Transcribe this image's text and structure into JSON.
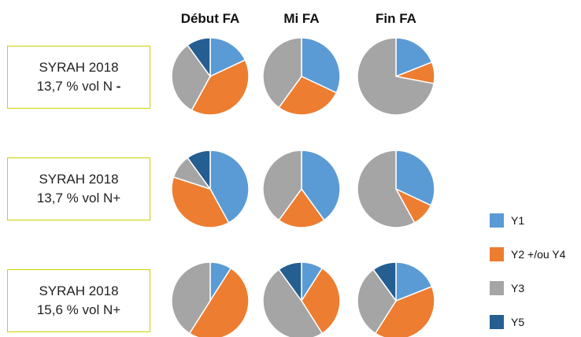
{
  "column_headers": [
    "Début FA",
    "Mi FA",
    "Fin FA"
  ],
  "rows": [
    {
      "line1": "SYRAH 2018",
      "line2": "13,7 % vol N",
      "suffix": "-"
    },
    {
      "line1": "SYRAH 2018",
      "line2": "13,7 % vol N+",
      "suffix": ""
    },
    {
      "line1": "SYRAH 2018",
      "line2": "15,6 % vol N+",
      "suffix": ""
    }
  ],
  "legend": [
    {
      "label": "Y1",
      "color": "#5b9bd5"
    },
    {
      "label": "Y2 +/ou Y4",
      "color": "#ed7d31"
    },
    {
      "label": "Y3",
      "color": "#a5a5a5"
    },
    {
      "label": "Y5",
      "color": "#255e91"
    }
  ],
  "chart_data": {
    "type": "pie",
    "series_names": [
      "Y1",
      "Y2 +/ou Y4",
      "Y3",
      "Y5"
    ],
    "colors": [
      "#5b9bd5",
      "#ed7d31",
      "#a5a5a5",
      "#255e91"
    ],
    "pies": [
      {
        "row": 0,
        "column": "Début FA",
        "values": [
          18,
          40,
          32,
          10
        ]
      },
      {
        "row": 0,
        "column": "Mi FA",
        "values": [
          32,
          28,
          40,
          0
        ]
      },
      {
        "row": 0,
        "column": "Fin FA",
        "values": [
          19,
          9,
          72,
          0
        ]
      },
      {
        "row": 1,
        "column": "Début FA",
        "values": [
          42,
          38,
          10,
          10
        ]
      },
      {
        "row": 1,
        "column": "Mi FA",
        "values": [
          40,
          20,
          40,
          0
        ]
      },
      {
        "row": 1,
        "column": "Fin FA",
        "values": [
          32,
          10,
          58,
          0
        ]
      },
      {
        "row": 2,
        "column": "Début FA",
        "values": [
          9,
          50,
          41,
          0
        ]
      },
      {
        "row": 2,
        "column": "Mi FA",
        "values": [
          9,
          32,
          49,
          10
        ]
      },
      {
        "row": 2,
        "column": "Fin FA",
        "values": [
          19,
          40,
          31,
          10
        ]
      }
    ]
  }
}
